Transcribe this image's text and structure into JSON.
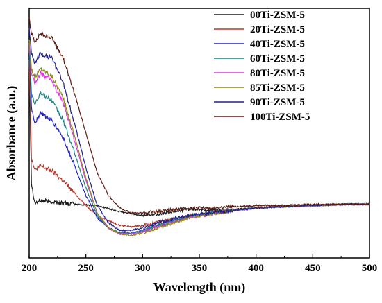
{
  "chart_data": {
    "type": "line",
    "xlabel": "Wavelength (nm)",
    "ylabel": "Absorbance (a.u.)",
    "xlim": [
      200,
      500
    ],
    "ylim": [
      0,
      1
    ],
    "xticks": [
      200,
      250,
      300,
      350,
      400,
      450,
      500
    ],
    "yticks_shown": false,
    "grid": false,
    "legend_position": "top-right",
    "series": [
      {
        "name": "00Ti-ZSM-5",
        "color": "#1a1a1a",
        "points": [
          [
            200,
            0.8
          ],
          [
            202,
            0.3
          ],
          [
            205,
            0.22
          ],
          [
            210,
            0.23
          ],
          [
            220,
            0.225
          ],
          [
            240,
            0.215
          ],
          [
            260,
            0.21
          ],
          [
            280,
            0.185
          ],
          [
            300,
            0.17
          ],
          [
            320,
            0.18
          ],
          [
            340,
            0.195
          ],
          [
            360,
            0.19
          ],
          [
            380,
            0.195
          ],
          [
            400,
            0.2
          ],
          [
            420,
            0.205
          ],
          [
            450,
            0.21
          ],
          [
            480,
            0.215
          ],
          [
            500,
            0.215
          ]
        ]
      },
      {
        "name": "20Ti-ZSM-5",
        "color": "#b03a2e",
        "points": [
          [
            200,
            0.8
          ],
          [
            202,
            0.4
          ],
          [
            205,
            0.35
          ],
          [
            210,
            0.37
          ],
          [
            220,
            0.35
          ],
          [
            230,
            0.31
          ],
          [
            240,
            0.26
          ],
          [
            250,
            0.21
          ],
          [
            260,
            0.17
          ],
          [
            270,
            0.15
          ],
          [
            280,
            0.13
          ],
          [
            290,
            0.125
          ],
          [
            300,
            0.13
          ],
          [
            320,
            0.15
          ],
          [
            340,
            0.17
          ],
          [
            360,
            0.18
          ],
          [
            380,
            0.19
          ],
          [
            400,
            0.2
          ],
          [
            420,
            0.205
          ],
          [
            450,
            0.21
          ],
          [
            480,
            0.215
          ],
          [
            500,
            0.215
          ]
        ]
      },
      {
        "name": "40Ti-ZSM-5",
        "color": "#2020c0",
        "points": [
          [
            200,
            0.85
          ],
          [
            202,
            0.6
          ],
          [
            205,
            0.54
          ],
          [
            210,
            0.58
          ],
          [
            220,
            0.55
          ],
          [
            230,
            0.48
          ],
          [
            240,
            0.37
          ],
          [
            250,
            0.25
          ],
          [
            260,
            0.16
          ],
          [
            270,
            0.12
          ],
          [
            280,
            0.1
          ],
          [
            290,
            0.1
          ],
          [
            300,
            0.11
          ],
          [
            320,
            0.14
          ],
          [
            340,
            0.165
          ],
          [
            360,
            0.18
          ],
          [
            380,
            0.19
          ],
          [
            400,
            0.2
          ],
          [
            420,
            0.205
          ],
          [
            450,
            0.21
          ],
          [
            480,
            0.215
          ],
          [
            500,
            0.215
          ]
        ]
      },
      {
        "name": "60Ti-ZSM-5",
        "color": "#1f7f82",
        "points": [
          [
            200,
            0.85
          ],
          [
            202,
            0.66
          ],
          [
            205,
            0.62
          ],
          [
            210,
            0.66
          ],
          [
            220,
            0.63
          ],
          [
            230,
            0.55
          ],
          [
            240,
            0.42
          ],
          [
            250,
            0.28
          ],
          [
            260,
            0.17
          ],
          [
            270,
            0.12
          ],
          [
            280,
            0.1
          ],
          [
            290,
            0.1
          ],
          [
            300,
            0.11
          ],
          [
            320,
            0.14
          ],
          [
            340,
            0.165
          ],
          [
            360,
            0.18
          ],
          [
            380,
            0.19
          ],
          [
            400,
            0.2
          ],
          [
            420,
            0.205
          ],
          [
            450,
            0.21
          ],
          [
            480,
            0.215
          ],
          [
            500,
            0.215
          ]
        ]
      },
      {
        "name": "80Ti-ZSM-5",
        "color": "#d93ad9",
        "points": [
          [
            200,
            0.86
          ],
          [
            202,
            0.74
          ],
          [
            205,
            0.7
          ],
          [
            210,
            0.74
          ],
          [
            220,
            0.71
          ],
          [
            230,
            0.62
          ],
          [
            240,
            0.47
          ],
          [
            250,
            0.31
          ],
          [
            260,
            0.18
          ],
          [
            270,
            0.12
          ],
          [
            280,
            0.095
          ],
          [
            290,
            0.095
          ],
          [
            300,
            0.105
          ],
          [
            320,
            0.135
          ],
          [
            340,
            0.16
          ],
          [
            360,
            0.175
          ],
          [
            380,
            0.19
          ],
          [
            400,
            0.2
          ],
          [
            420,
            0.205
          ],
          [
            450,
            0.21
          ],
          [
            480,
            0.215
          ],
          [
            500,
            0.215
          ]
        ]
      },
      {
        "name": "85Ti-ZSM-5",
        "color": "#8a8a1a",
        "points": [
          [
            200,
            0.88
          ],
          [
            202,
            0.76
          ],
          [
            205,
            0.72
          ],
          [
            210,
            0.76
          ],
          [
            220,
            0.73
          ],
          [
            230,
            0.64
          ],
          [
            240,
            0.49
          ],
          [
            250,
            0.32
          ],
          [
            260,
            0.18
          ],
          [
            270,
            0.12
          ],
          [
            280,
            0.095
          ],
          [
            290,
            0.09
          ],
          [
            300,
            0.1
          ],
          [
            320,
            0.13
          ],
          [
            340,
            0.16
          ],
          [
            360,
            0.175
          ],
          [
            380,
            0.19
          ],
          [
            400,
            0.2
          ],
          [
            420,
            0.205
          ],
          [
            450,
            0.21
          ],
          [
            480,
            0.215
          ],
          [
            500,
            0.215
          ]
        ]
      },
      {
        "name": "90Ti-ZSM-5",
        "color": "#20208a",
        "points": [
          [
            200,
            0.92
          ],
          [
            202,
            0.82
          ],
          [
            205,
            0.78
          ],
          [
            210,
            0.82
          ],
          [
            220,
            0.8
          ],
          [
            230,
            0.7
          ],
          [
            240,
            0.54
          ],
          [
            250,
            0.36
          ],
          [
            260,
            0.21
          ],
          [
            270,
            0.14
          ],
          [
            280,
            0.11
          ],
          [
            290,
            0.11
          ],
          [
            300,
            0.12
          ],
          [
            320,
            0.15
          ],
          [
            340,
            0.17
          ],
          [
            360,
            0.18
          ],
          [
            380,
            0.19
          ],
          [
            400,
            0.2
          ],
          [
            420,
            0.205
          ],
          [
            450,
            0.21
          ],
          [
            480,
            0.215
          ],
          [
            500,
            0.215
          ]
        ]
      },
      {
        "name": "100Ti-ZSM-5",
        "color": "#5a1a10",
        "points": [
          [
            200,
            0.96
          ],
          [
            202,
            0.9
          ],
          [
            205,
            0.86
          ],
          [
            210,
            0.9
          ],
          [
            220,
            0.88
          ],
          [
            230,
            0.8
          ],
          [
            240,
            0.66
          ],
          [
            250,
            0.5
          ],
          [
            260,
            0.34
          ],
          [
            270,
            0.25
          ],
          [
            280,
            0.2
          ],
          [
            290,
            0.18
          ],
          [
            300,
            0.18
          ],
          [
            320,
            0.19
          ],
          [
            340,
            0.2
          ],
          [
            360,
            0.2
          ],
          [
            380,
            0.205
          ],
          [
            400,
            0.21
          ],
          [
            420,
            0.21
          ],
          [
            450,
            0.215
          ],
          [
            480,
            0.215
          ],
          [
            500,
            0.215
          ]
        ]
      }
    ]
  }
}
